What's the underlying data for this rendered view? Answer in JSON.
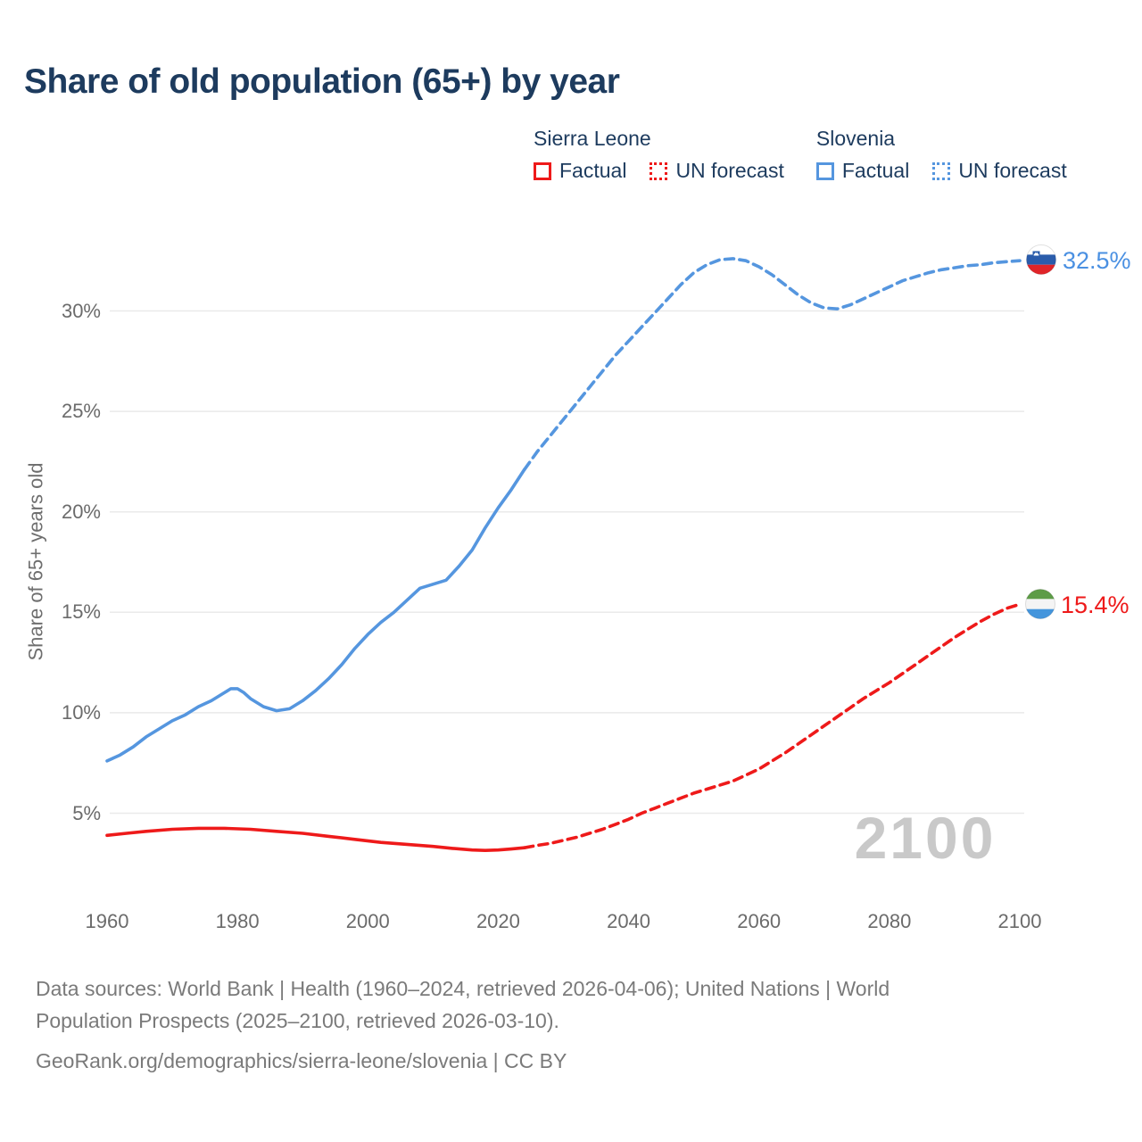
{
  "title": "Share of old population (65+) by year",
  "colors": {
    "title_navy": "#1d3b5e",
    "sierra_leone_red": "#ee1a1a",
    "slovenia_blue": "#5596df",
    "axis_gray": "#6b6b6b",
    "grid_gray": "#eaeaea",
    "watermark_gray": "#c9c9c9",
    "footer_gray": "#7a7a7a"
  },
  "legend": {
    "groups": [
      {
        "country": "Sierra Leone",
        "color": "#ee1a1a",
        "items": [
          {
            "label": "Factual",
            "style": "solid"
          },
          {
            "label": "UN forecast",
            "style": "dotted"
          }
        ]
      },
      {
        "country": "Slovenia",
        "color": "#5596df",
        "items": [
          {
            "label": "Factual",
            "style": "solid"
          },
          {
            "label": "UN forecast",
            "style": "dotted"
          }
        ]
      }
    ]
  },
  "chart_data": {
    "type": "line",
    "title": "Share of old population (65+) by year",
    "xlabel": "",
    "ylabel": "Share of 65+ years old",
    "xlim": [
      1960,
      2100
    ],
    "x_ticks": [
      1960,
      1980,
      2000,
      2020,
      2040,
      2060,
      2080,
      2100
    ],
    "y_ticks": [
      5,
      10,
      15,
      20,
      25,
      30
    ],
    "y_tick_suffix": "%",
    "grid": "horizontal",
    "watermark": "2100",
    "legend_position": "top-right",
    "series": [
      {
        "name": "Slovenia",
        "color": "#5596df",
        "label_color": "#4a90e2",
        "end_label": "32.5%",
        "flag_icon": "slovenia-flag",
        "factual": [
          [
            1960,
            7.6
          ],
          [
            1962,
            7.9
          ],
          [
            1964,
            8.3
          ],
          [
            1966,
            8.8
          ],
          [
            1968,
            9.2
          ],
          [
            1970,
            9.6
          ],
          [
            1972,
            9.9
          ],
          [
            1974,
            10.3
          ],
          [
            1976,
            10.6
          ],
          [
            1978,
            11.0
          ],
          [
            1979,
            11.2
          ],
          [
            1980,
            11.2
          ],
          [
            1981,
            11.0
          ],
          [
            1982,
            10.7
          ],
          [
            1984,
            10.3
          ],
          [
            1986,
            10.1
          ],
          [
            1988,
            10.2
          ],
          [
            1990,
            10.6
          ],
          [
            1992,
            11.1
          ],
          [
            1994,
            11.7
          ],
          [
            1996,
            12.4
          ],
          [
            1998,
            13.2
          ],
          [
            2000,
            13.9
          ],
          [
            2002,
            14.5
          ],
          [
            2004,
            15.0
          ],
          [
            2006,
            15.6
          ],
          [
            2008,
            16.2
          ],
          [
            2010,
            16.4
          ],
          [
            2012,
            16.6
          ],
          [
            2014,
            17.3
          ],
          [
            2016,
            18.1
          ],
          [
            2018,
            19.2
          ],
          [
            2020,
            20.2
          ],
          [
            2022,
            21.1
          ],
          [
            2024,
            22.1
          ]
        ],
        "forecast": [
          [
            2024,
            22.1
          ],
          [
            2026,
            23.0
          ],
          [
            2028,
            23.8
          ],
          [
            2030,
            24.6
          ],
          [
            2032,
            25.4
          ],
          [
            2034,
            26.2
          ],
          [
            2036,
            27.0
          ],
          [
            2038,
            27.8
          ],
          [
            2040,
            28.5
          ],
          [
            2042,
            29.2
          ],
          [
            2044,
            29.9
          ],
          [
            2046,
            30.6
          ],
          [
            2048,
            31.3
          ],
          [
            2050,
            31.9
          ],
          [
            2052,
            32.3
          ],
          [
            2054,
            32.55
          ],
          [
            2056,
            32.6
          ],
          [
            2058,
            32.5
          ],
          [
            2060,
            32.2
          ],
          [
            2062,
            31.8
          ],
          [
            2064,
            31.3
          ],
          [
            2066,
            30.8
          ],
          [
            2068,
            30.4
          ],
          [
            2070,
            30.15
          ],
          [
            2072,
            30.1
          ],
          [
            2074,
            30.3
          ],
          [
            2076,
            30.6
          ],
          [
            2078,
            30.9
          ],
          [
            2080,
            31.2
          ],
          [
            2082,
            31.5
          ],
          [
            2084,
            31.7
          ],
          [
            2086,
            31.9
          ],
          [
            2088,
            32.05
          ],
          [
            2090,
            32.15
          ],
          [
            2092,
            32.25
          ],
          [
            2094,
            32.3
          ],
          [
            2096,
            32.4
          ],
          [
            2098,
            32.45
          ],
          [
            2100,
            32.5
          ]
        ]
      },
      {
        "name": "Sierra Leone",
        "color": "#ee1a1a",
        "label_color": "#ee1a1a",
        "end_label": "15.4%",
        "flag_icon": "sierra-leone-flag",
        "factual": [
          [
            1960,
            3.9
          ],
          [
            1963,
            4.0
          ],
          [
            1966,
            4.1
          ],
          [
            1970,
            4.2
          ],
          [
            1974,
            4.25
          ],
          [
            1978,
            4.25
          ],
          [
            1982,
            4.2
          ],
          [
            1986,
            4.1
          ],
          [
            1990,
            4.0
          ],
          [
            1994,
            3.85
          ],
          [
            1998,
            3.7
          ],
          [
            2002,
            3.55
          ],
          [
            2006,
            3.45
          ],
          [
            2010,
            3.35
          ],
          [
            2013,
            3.25
          ],
          [
            2016,
            3.17
          ],
          [
            2018,
            3.15
          ],
          [
            2020,
            3.17
          ],
          [
            2022,
            3.22
          ],
          [
            2024,
            3.28
          ]
        ],
        "forecast": [
          [
            2024,
            3.28
          ],
          [
            2026,
            3.4
          ],
          [
            2028,
            3.5
          ],
          [
            2030,
            3.65
          ],
          [
            2032,
            3.8
          ],
          [
            2034,
            4.0
          ],
          [
            2036,
            4.2
          ],
          [
            2038,
            4.45
          ],
          [
            2040,
            4.7
          ],
          [
            2042,
            5.0
          ],
          [
            2044,
            5.25
          ],
          [
            2046,
            5.5
          ],
          [
            2048,
            5.75
          ],
          [
            2050,
            6.0
          ],
          [
            2052,
            6.2
          ],
          [
            2054,
            6.4
          ],
          [
            2056,
            6.6
          ],
          [
            2058,
            6.9
          ],
          [
            2060,
            7.2
          ],
          [
            2062,
            7.6
          ],
          [
            2064,
            8.0
          ],
          [
            2066,
            8.45
          ],
          [
            2068,
            8.9
          ],
          [
            2070,
            9.35
          ],
          [
            2072,
            9.8
          ],
          [
            2074,
            10.25
          ],
          [
            2076,
            10.7
          ],
          [
            2078,
            11.1
          ],
          [
            2080,
            11.5
          ],
          [
            2082,
            11.95
          ],
          [
            2084,
            12.4
          ],
          [
            2086,
            12.85
          ],
          [
            2088,
            13.3
          ],
          [
            2090,
            13.75
          ],
          [
            2092,
            14.15
          ],
          [
            2094,
            14.55
          ],
          [
            2096,
            14.9
          ],
          [
            2098,
            15.2
          ],
          [
            2100,
            15.4
          ]
        ]
      }
    ]
  },
  "icons": {
    "slovenia_flag": "circle with white/blue/red horizontal bands and small shield",
    "sierra_leone_flag": "circle with green/white/blue horizontal bands"
  },
  "footer": {
    "lines": [
      "Data sources: World Bank | Health (1960–2024, retrieved 2026-04-06); United Nations | World",
      "Population Prospects (2025–2100, retrieved 2026-03-10).",
      "GeoRank.org/demographics/sierra-leone/slovenia | CC BY"
    ]
  }
}
